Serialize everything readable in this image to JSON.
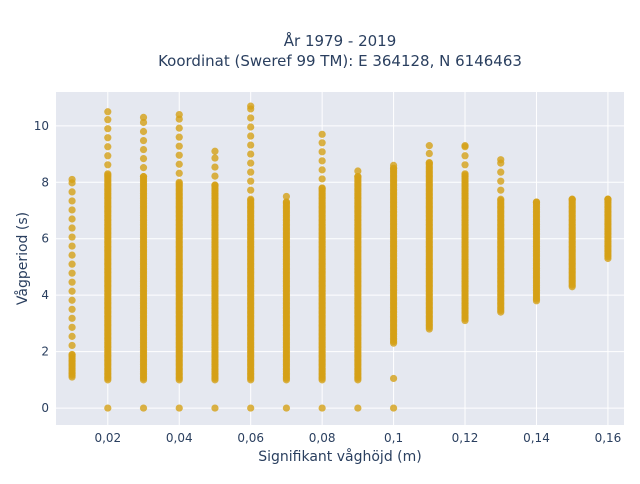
{
  "chart_data": {
    "type": "scatter",
    "title": [
      "År 1979 - 2019",
      "Koordinat (Sweref 99 TM): E 364128, N 6146463"
    ],
    "xlabel": "Signifikant våghöjd (m)",
    "ylabel": "Vågperiod (s)",
    "xlim": [
      0.0055,
      0.1645
    ],
    "ylim": [
      -0.6,
      11.2
    ],
    "x_ticks": [
      0.02,
      0.04,
      0.06,
      0.08,
      0.1,
      0.12,
      0.14,
      0.16
    ],
    "x_tick_labels": [
      "0,02",
      "0,04",
      "0,06",
      "0,08",
      "0,1",
      "0,12",
      "0,14",
      "0,16"
    ],
    "y_ticks": [
      0,
      2,
      4,
      6,
      8,
      10
    ],
    "y_tick_labels": [
      "0",
      "2",
      "4",
      "6",
      "8",
      "10"
    ],
    "grid": true,
    "colors": {
      "marker": "#D4A017",
      "plot_bg": "#E5E8F0",
      "grid": "#ffffff"
    },
    "series": [
      {
        "color": "#D4A017",
        "columns": [
          {
            "x": 0.01,
            "min": 1.1,
            "max": 8.1,
            "sparse_above": 1.9,
            "zero": false,
            "outliers": []
          },
          {
            "x": 0.02,
            "min": 1.0,
            "max": 10.5,
            "sparse_above": 8.3,
            "zero": true,
            "outliers": []
          },
          {
            "x": 0.03,
            "min": 1.0,
            "max": 10.3,
            "sparse_above": 8.2,
            "zero": true,
            "outliers": []
          },
          {
            "x": 0.04,
            "min": 1.0,
            "max": 10.4,
            "sparse_above": 8.0,
            "zero": true,
            "outliers": []
          },
          {
            "x": 0.05,
            "min": 1.0,
            "max": 9.1,
            "sparse_above": 7.9,
            "zero": true,
            "outliers": []
          },
          {
            "x": 0.06,
            "min": 1.0,
            "max": 10.7,
            "sparse_above": 7.4,
            "zero": true,
            "outliers": []
          },
          {
            "x": 0.07,
            "min": 1.0,
            "max": 7.5,
            "sparse_above": 7.3,
            "zero": true,
            "outliers": []
          },
          {
            "x": 0.08,
            "min": 1.0,
            "max": 9.7,
            "sparse_above": 7.8,
            "zero": true,
            "outliers": []
          },
          {
            "x": 0.09,
            "min": 1.0,
            "max": 8.4,
            "sparse_above": 8.2,
            "zero": true,
            "outliers": []
          },
          {
            "x": 0.1,
            "min": 2.3,
            "max": 8.6,
            "sparse_above": 8.5,
            "zero": true,
            "outliers": [
              1.05
            ]
          },
          {
            "x": 0.11,
            "min": 2.8,
            "max": 9.3,
            "sparse_above": 8.7,
            "zero": false,
            "outliers": []
          },
          {
            "x": 0.12,
            "min": 3.1,
            "max": 9.3,
            "sparse_above": 8.3,
            "zero": false,
            "outliers": []
          },
          {
            "x": 0.13,
            "min": 3.4,
            "max": 8.8,
            "sparse_above": 7.4,
            "zero": false,
            "outliers": []
          },
          {
            "x": 0.14,
            "min": 3.8,
            "max": 7.3,
            "sparse_above": 7.3,
            "zero": false,
            "outliers": []
          },
          {
            "x": 0.15,
            "min": 4.3,
            "max": 7.4,
            "sparse_above": 7.4,
            "zero": false,
            "outliers": []
          },
          {
            "x": 0.16,
            "min": 5.3,
            "max": 7.4,
            "sparse_above": 7.4,
            "zero": false,
            "outliers": []
          }
        ]
      }
    ]
  }
}
